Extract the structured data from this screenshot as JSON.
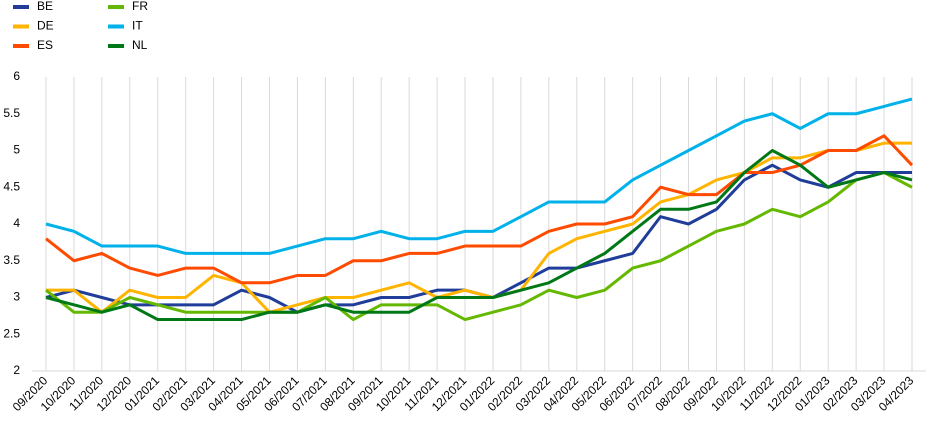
{
  "chart_data": {
    "type": "line",
    "categories": [
      "09/2020",
      "10/2020",
      "11/2020",
      "12/2020",
      "01/2021",
      "02/2021",
      "03/2021",
      "04/2021",
      "05/2021",
      "06/2021",
      "07/2021",
      "08/2021",
      "09/2021",
      "10/2021",
      "11/2021",
      "12/2021",
      "01/2022",
      "02/2022",
      "03/2022",
      "04/2022",
      "05/2022",
      "06/2022",
      "07/2022",
      "08/2022",
      "09/2022",
      "10/2022",
      "11/2022",
      "12/2022",
      "01/2023",
      "02/2023",
      "03/2023",
      "04/2023"
    ],
    "series": [
      {
        "name": "BE",
        "color": "#1f3d99",
        "values": [
          3.0,
          3.1,
          3.0,
          2.9,
          2.9,
          2.9,
          2.9,
          3.1,
          3.0,
          2.8,
          2.9,
          2.9,
          3.0,
          3.0,
          3.1,
          3.1,
          3.0,
          3.2,
          3.4,
          3.4,
          3.5,
          3.6,
          4.1,
          4.0,
          4.2,
          4.6,
          4.8,
          4.6,
          4.5,
          4.7,
          4.7,
          4.7
        ]
      },
      {
        "name": "DE",
        "color": "#ffb400",
        "values": [
          3.1,
          3.1,
          2.8,
          3.1,
          3.0,
          3.0,
          3.3,
          3.2,
          2.8,
          2.9,
          3.0,
          3.0,
          3.1,
          3.2,
          3.0,
          3.1,
          3.0,
          3.1,
          3.6,
          3.8,
          3.9,
          4.0,
          4.3,
          4.4,
          4.6,
          4.7,
          4.9,
          4.9,
          5.0,
          5.0,
          5.1,
          5.1
        ]
      },
      {
        "name": "ES",
        "color": "#ff4b00",
        "values": [
          3.8,
          3.5,
          3.6,
          3.4,
          3.3,
          3.4,
          3.4,
          3.2,
          3.2,
          3.3,
          3.3,
          3.5,
          3.5,
          3.6,
          3.6,
          3.7,
          3.7,
          3.7,
          3.9,
          4.0,
          4.0,
          4.1,
          4.5,
          4.4,
          4.4,
          4.7,
          4.7,
          4.8,
          5.0,
          5.0,
          5.2,
          4.8
        ]
      },
      {
        "name": "FR",
        "color": "#65b800",
        "values": [
          3.1,
          2.8,
          2.8,
          3.0,
          2.9,
          2.8,
          2.8,
          2.8,
          2.8,
          2.8,
          3.0,
          2.7,
          2.9,
          2.9,
          2.9,
          2.7,
          2.8,
          2.9,
          3.1,
          3.0,
          3.1,
          3.4,
          3.5,
          3.7,
          3.9,
          4.0,
          4.2,
          4.1,
          4.3,
          4.6,
          4.7,
          4.5
        ]
      },
      {
        "name": "IT",
        "color": "#00b1ea",
        "values": [
          4.0,
          3.9,
          3.7,
          3.7,
          3.7,
          3.6,
          3.6,
          3.6,
          3.6,
          3.7,
          3.8,
          3.8,
          3.9,
          3.8,
          3.8,
          3.9,
          3.9,
          4.1,
          4.3,
          4.3,
          4.3,
          4.6,
          4.8,
          5.0,
          5.2,
          5.4,
          5.5,
          5.3,
          5.5,
          5.5,
          5.6,
          5.7
        ]
      },
      {
        "name": "NL",
        "color": "#007816",
        "values": [
          3.0,
          2.9,
          2.8,
          2.9,
          2.7,
          2.7,
          2.7,
          2.7,
          2.8,
          2.8,
          2.9,
          2.8,
          2.8,
          2.8,
          3.0,
          3.0,
          3.0,
          3.1,
          3.2,
          3.4,
          3.6,
          3.9,
          4.2,
          4.2,
          4.3,
          4.7,
          5.0,
          4.8,
          4.5,
          4.6,
          4.7,
          4.6
        ]
      }
    ],
    "ylim": [
      2,
      6
    ],
    "yticks": [
      2,
      2.5,
      3,
      3.5,
      4,
      4.5,
      5,
      5.5,
      6
    ],
    "xgrid": true,
    "legend": "top-left"
  }
}
